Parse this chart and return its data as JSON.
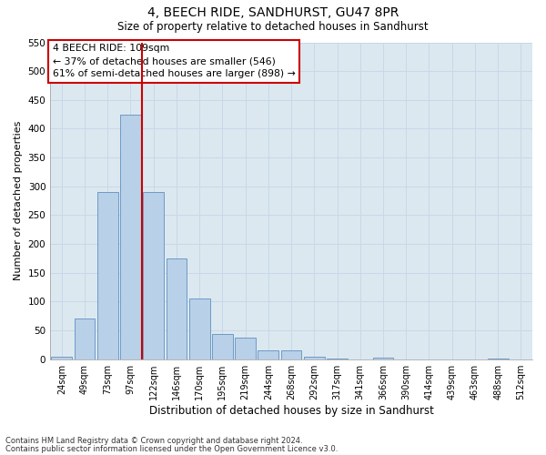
{
  "title": "4, BEECH RIDE, SANDHURST, GU47 8PR",
  "subtitle": "Size of property relative to detached houses in Sandhurst",
  "xlabel": "Distribution of detached houses by size in Sandhurst",
  "ylabel": "Number of detached properties",
  "bar_labels": [
    "24sqm",
    "49sqm",
    "73sqm",
    "97sqm",
    "122sqm",
    "146sqm",
    "170sqm",
    "195sqm",
    "219sqm",
    "244sqm",
    "268sqm",
    "292sqm",
    "317sqm",
    "341sqm",
    "366sqm",
    "390sqm",
    "414sqm",
    "439sqm",
    "463sqm",
    "488sqm",
    "512sqm"
  ],
  "bar_values": [
    5,
    70,
    290,
    425,
    290,
    175,
    105,
    43,
    38,
    15,
    15,
    5,
    1,
    0,
    2,
    0,
    0,
    0,
    0,
    1,
    0
  ],
  "bar_color": "#b8d0e8",
  "bar_edge_color": "#6090c0",
  "vline_color": "#cc0000",
  "ylim": [
    0,
    550
  ],
  "yticks": [
    0,
    50,
    100,
    150,
    200,
    250,
    300,
    350,
    400,
    450,
    500,
    550
  ],
  "annotation_box_text": "4 BEECH RIDE: 109sqm\n← 37% of detached houses are smaller (546)\n61% of semi-detached houses are larger (898) →",
  "annotation_box_color": "#cc0000",
  "annotation_box_bg": "#ffffff",
  "grid_color": "#c8d8e8",
  "bg_color": "#dce8f0",
  "footnote1": "Contains HM Land Registry data © Crown copyright and database right 2024.",
  "footnote2": "Contains public sector information licensed under the Open Government Licence v3.0."
}
